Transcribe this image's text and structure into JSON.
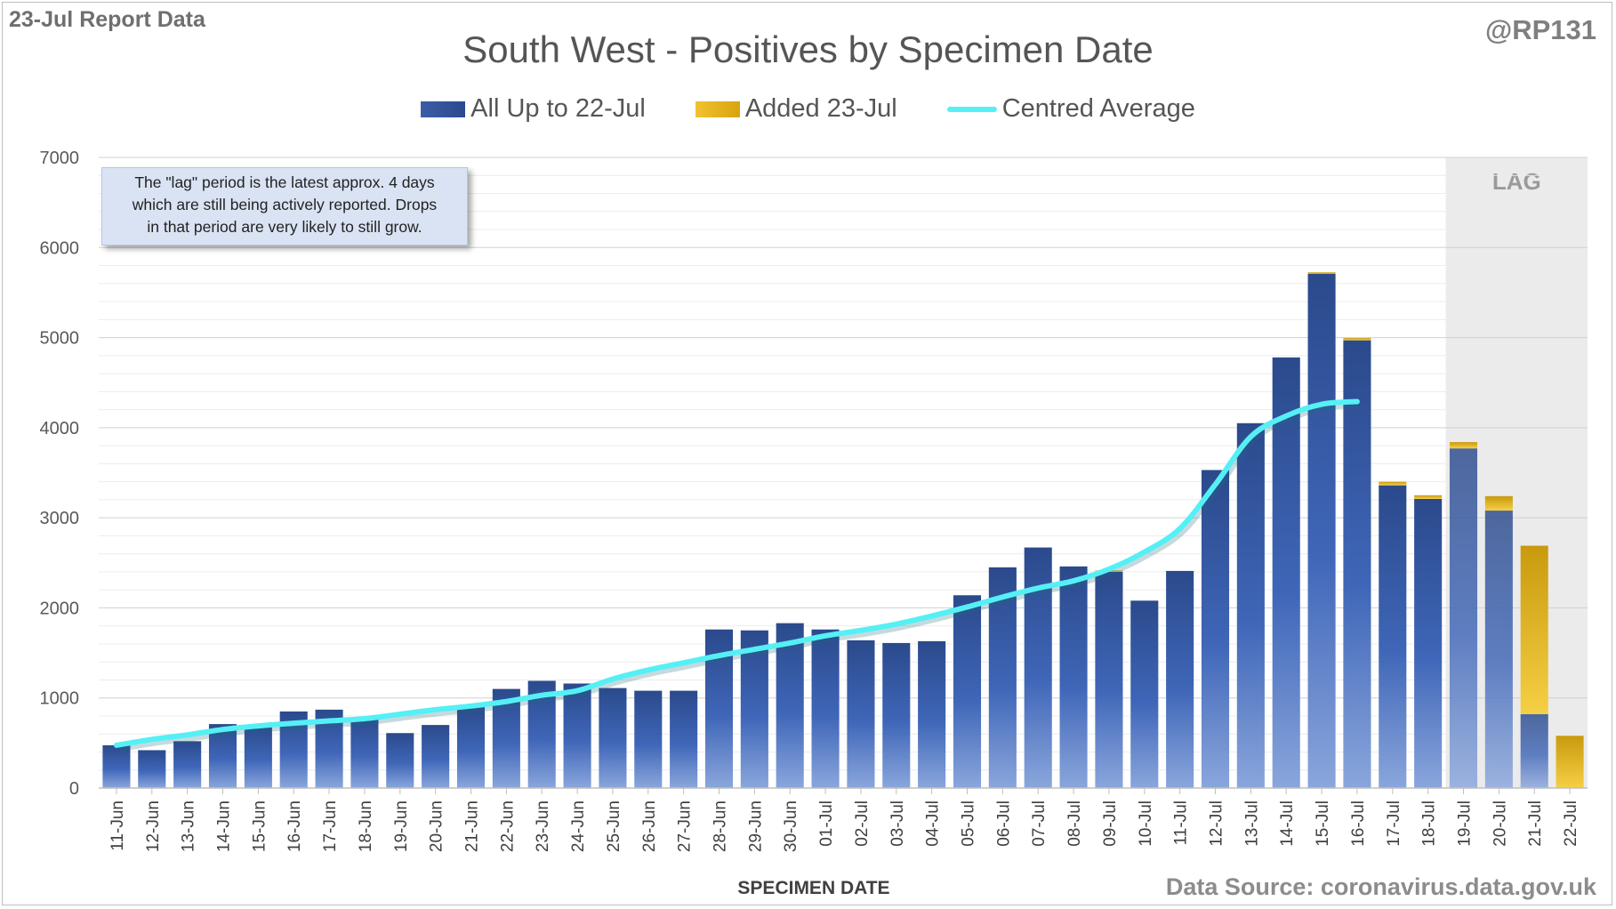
{
  "report_label": "23-Jul Report Data",
  "handle": "@RP131",
  "source": "Data Source: coronavirus.data.gov.uk",
  "note": "The \"lag\" period is the latest approx. 4 days\nwhich are still being actively reported.  Drops\nin that period are very likely to still grow.",
  "colors": {
    "all": "#3a5ba3",
    "added": "#f0c030",
    "avg": "#55f0f5",
    "lag_band": "#ebebeb"
  },
  "chart_data": {
    "type": "bar",
    "title": "South West - Positives by Specimen Date",
    "xlabel": "SPECIMEN DATE",
    "ylabel": "",
    "ylim": [
      0,
      7000
    ],
    "yticks": [
      0,
      1000,
      2000,
      3000,
      4000,
      5000,
      6000,
      7000
    ],
    "grid": true,
    "stacked": true,
    "legend_position": "top",
    "lag_label": "LAG",
    "lag_categories": [
      "19-Jul",
      "20-Jul",
      "21-Jul",
      "22-Jul"
    ],
    "categories": [
      "11-Jun",
      "12-Jun",
      "13-Jun",
      "14-Jun",
      "15-Jun",
      "16-Jun",
      "17-Jun",
      "18-Jun",
      "19-Jun",
      "20-Jun",
      "21-Jun",
      "22-Jun",
      "23-Jun",
      "24-Jun",
      "25-Jun",
      "26-Jun",
      "27-Jun",
      "28-Jun",
      "29-Jun",
      "30-Jun",
      "01-Jul",
      "02-Jul",
      "03-Jul",
      "04-Jul",
      "05-Jul",
      "06-Jul",
      "07-Jul",
      "08-Jul",
      "09-Jul",
      "10-Jul",
      "11-Jul",
      "12-Jul",
      "13-Jul",
      "14-Jul",
      "15-Jul",
      "16-Jul",
      "17-Jul",
      "18-Jul",
      "19-Jul",
      "20-Jul",
      "21-Jul",
      "22-Jul"
    ],
    "series": [
      {
        "name": "All Up to 22-Jul",
        "kind": "bar",
        "values": [
          475,
          420,
          520,
          710,
          690,
          850,
          870,
          780,
          610,
          700,
          900,
          1100,
          1190,
          1160,
          1110,
          1080,
          1080,
          1760,
          1750,
          1830,
          1760,
          1640,
          1610,
          1630,
          2140,
          2450,
          2670,
          2460,
          2400,
          2080,
          2410,
          3530,
          4050,
          4780,
          5710,
          4970,
          3360,
          3210,
          3770,
          3080,
          820,
          0
        ]
      },
      {
        "name": "Added 23-Jul",
        "kind": "bar",
        "values": [
          0,
          0,
          0,
          0,
          0,
          0,
          0,
          0,
          0,
          0,
          0,
          0,
          0,
          0,
          0,
          0,
          0,
          0,
          0,
          0,
          0,
          0,
          0,
          0,
          0,
          0,
          0,
          0,
          15,
          0,
          0,
          0,
          0,
          0,
          15,
          25,
          40,
          40,
          70,
          160,
          1870,
          580
        ]
      },
      {
        "name": "Centred Average",
        "kind": "line",
        "values": [
          475,
          540,
          590,
          650,
          690,
          720,
          745,
          770,
          820,
          870,
          910,
          960,
          1030,
          1080,
          1210,
          1310,
          1390,
          1470,
          1540,
          1610,
          1690,
          1750,
          1820,
          1910,
          2010,
          2120,
          2220,
          2300,
          2430,
          2620,
          2880,
          3370,
          3900,
          4130,
          4260,
          4290,
          null,
          null,
          null,
          null,
          null,
          null
        ]
      }
    ]
  }
}
